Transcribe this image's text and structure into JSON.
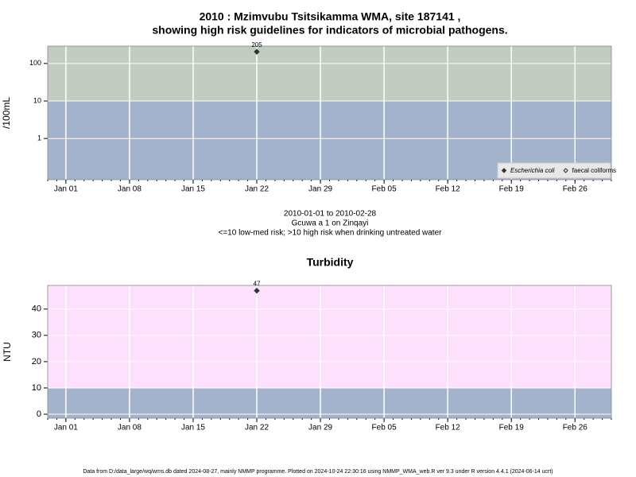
{
  "chart_data": [
    {
      "type": "scatter",
      "title": "2010 : Mzimvubu Tsitsikamma WMA, site 187141 ,",
      "subtitle": "showing high risk guidelines for indicators of microbial pathogens.",
      "y_label": "/100mL",
      "log": true,
      "grid": true,
      "legend": "bottom-right",
      "x": [
        "2010-01-22"
      ],
      "series": [
        {
          "name": "Escherichia coli",
          "color": "#333333",
          "marker": "filled",
          "italic": true,
          "values": [
            205
          ]
        },
        {
          "name": "faecal coliforms",
          "color": "#333333",
          "marker": "open",
          "values": [
            null
          ]
        }
      ],
      "xlim": [
        "2009-12-30",
        "2010-03-02"
      ],
      "xticks": [
        {
          "value": "2010-01-01",
          "label": "Jan 01"
        },
        {
          "value": "2010-01-08",
          "label": "Jan 08"
        },
        {
          "value": "2010-01-15",
          "label": "Jan 15"
        },
        {
          "value": "2010-01-22",
          "label": "Jan 22"
        },
        {
          "value": "2010-01-29",
          "label": "Jan 29"
        },
        {
          "value": "2010-02-05",
          "label": "Feb 05"
        },
        {
          "value": "2010-02-12",
          "label": "Feb 12"
        },
        {
          "value": "2010-02-19",
          "label": "Feb 19"
        },
        {
          "value": "2010-02-26",
          "label": "Feb 26"
        }
      ],
      "ylim": [
        0.08,
        290
      ],
      "yticks": [
        1,
        10,
        100
      ],
      "bands": [
        {
          "to": 10,
          "color": "#a2b3cb"
        },
        {
          "from": 10,
          "color": "#c3ccc0"
        }
      ],
      "annotations": [
        "2010-01-01 to 2010-02-28",
        "Gcuwa a 1 on Zinqayi",
        "<=10 low-med risk; >10 high risk when drinking untreated water"
      ]
    },
    {
      "type": "scatter",
      "title": "Turbidity",
      "y_label": "NTU",
      "log": false,
      "grid": true,
      "x": [
        "2010-01-22"
      ],
      "series": [
        {
          "name": "Turbidity",
          "color": "#333333",
          "marker": "filled",
          "values": [
            47
          ]
        }
      ],
      "xlim": [
        "2009-12-30",
        "2010-03-02"
      ],
      "xticks": [
        {
          "value": "2010-01-01",
          "label": "Jan 01"
        },
        {
          "value": "2010-01-08",
          "label": "Jan 08"
        },
        {
          "value": "2010-01-15",
          "label": "Jan 15"
        },
        {
          "value": "2010-01-22",
          "label": "Jan 22"
        },
        {
          "value": "2010-01-29",
          "label": "Jan 29"
        },
        {
          "value": "2010-02-05",
          "label": "Feb 05"
        },
        {
          "value": "2010-02-12",
          "label": "Feb 12"
        },
        {
          "value": "2010-02-19",
          "label": "Feb 19"
        },
        {
          "value": "2010-02-26",
          "label": "Feb 26"
        }
      ],
      "ylim": [
        -1.5,
        49
      ],
      "yticks": [
        0,
        10,
        20,
        30,
        40
      ],
      "bands": [
        {
          "to": 10,
          "color": "#a2b3cb"
        },
        {
          "from": 10,
          "color": "#fde0fc"
        }
      ]
    }
  ],
  "footer": "Data from D:/data_large/wq/wms.db dated 2024-08-27, mainly NMMP programme. Plotted on 2024-10-24 22:30:16 using NMMP_WMA_web.R ver 9.3 under R version 4.4.1 (2024-06-14 ucrt)"
}
